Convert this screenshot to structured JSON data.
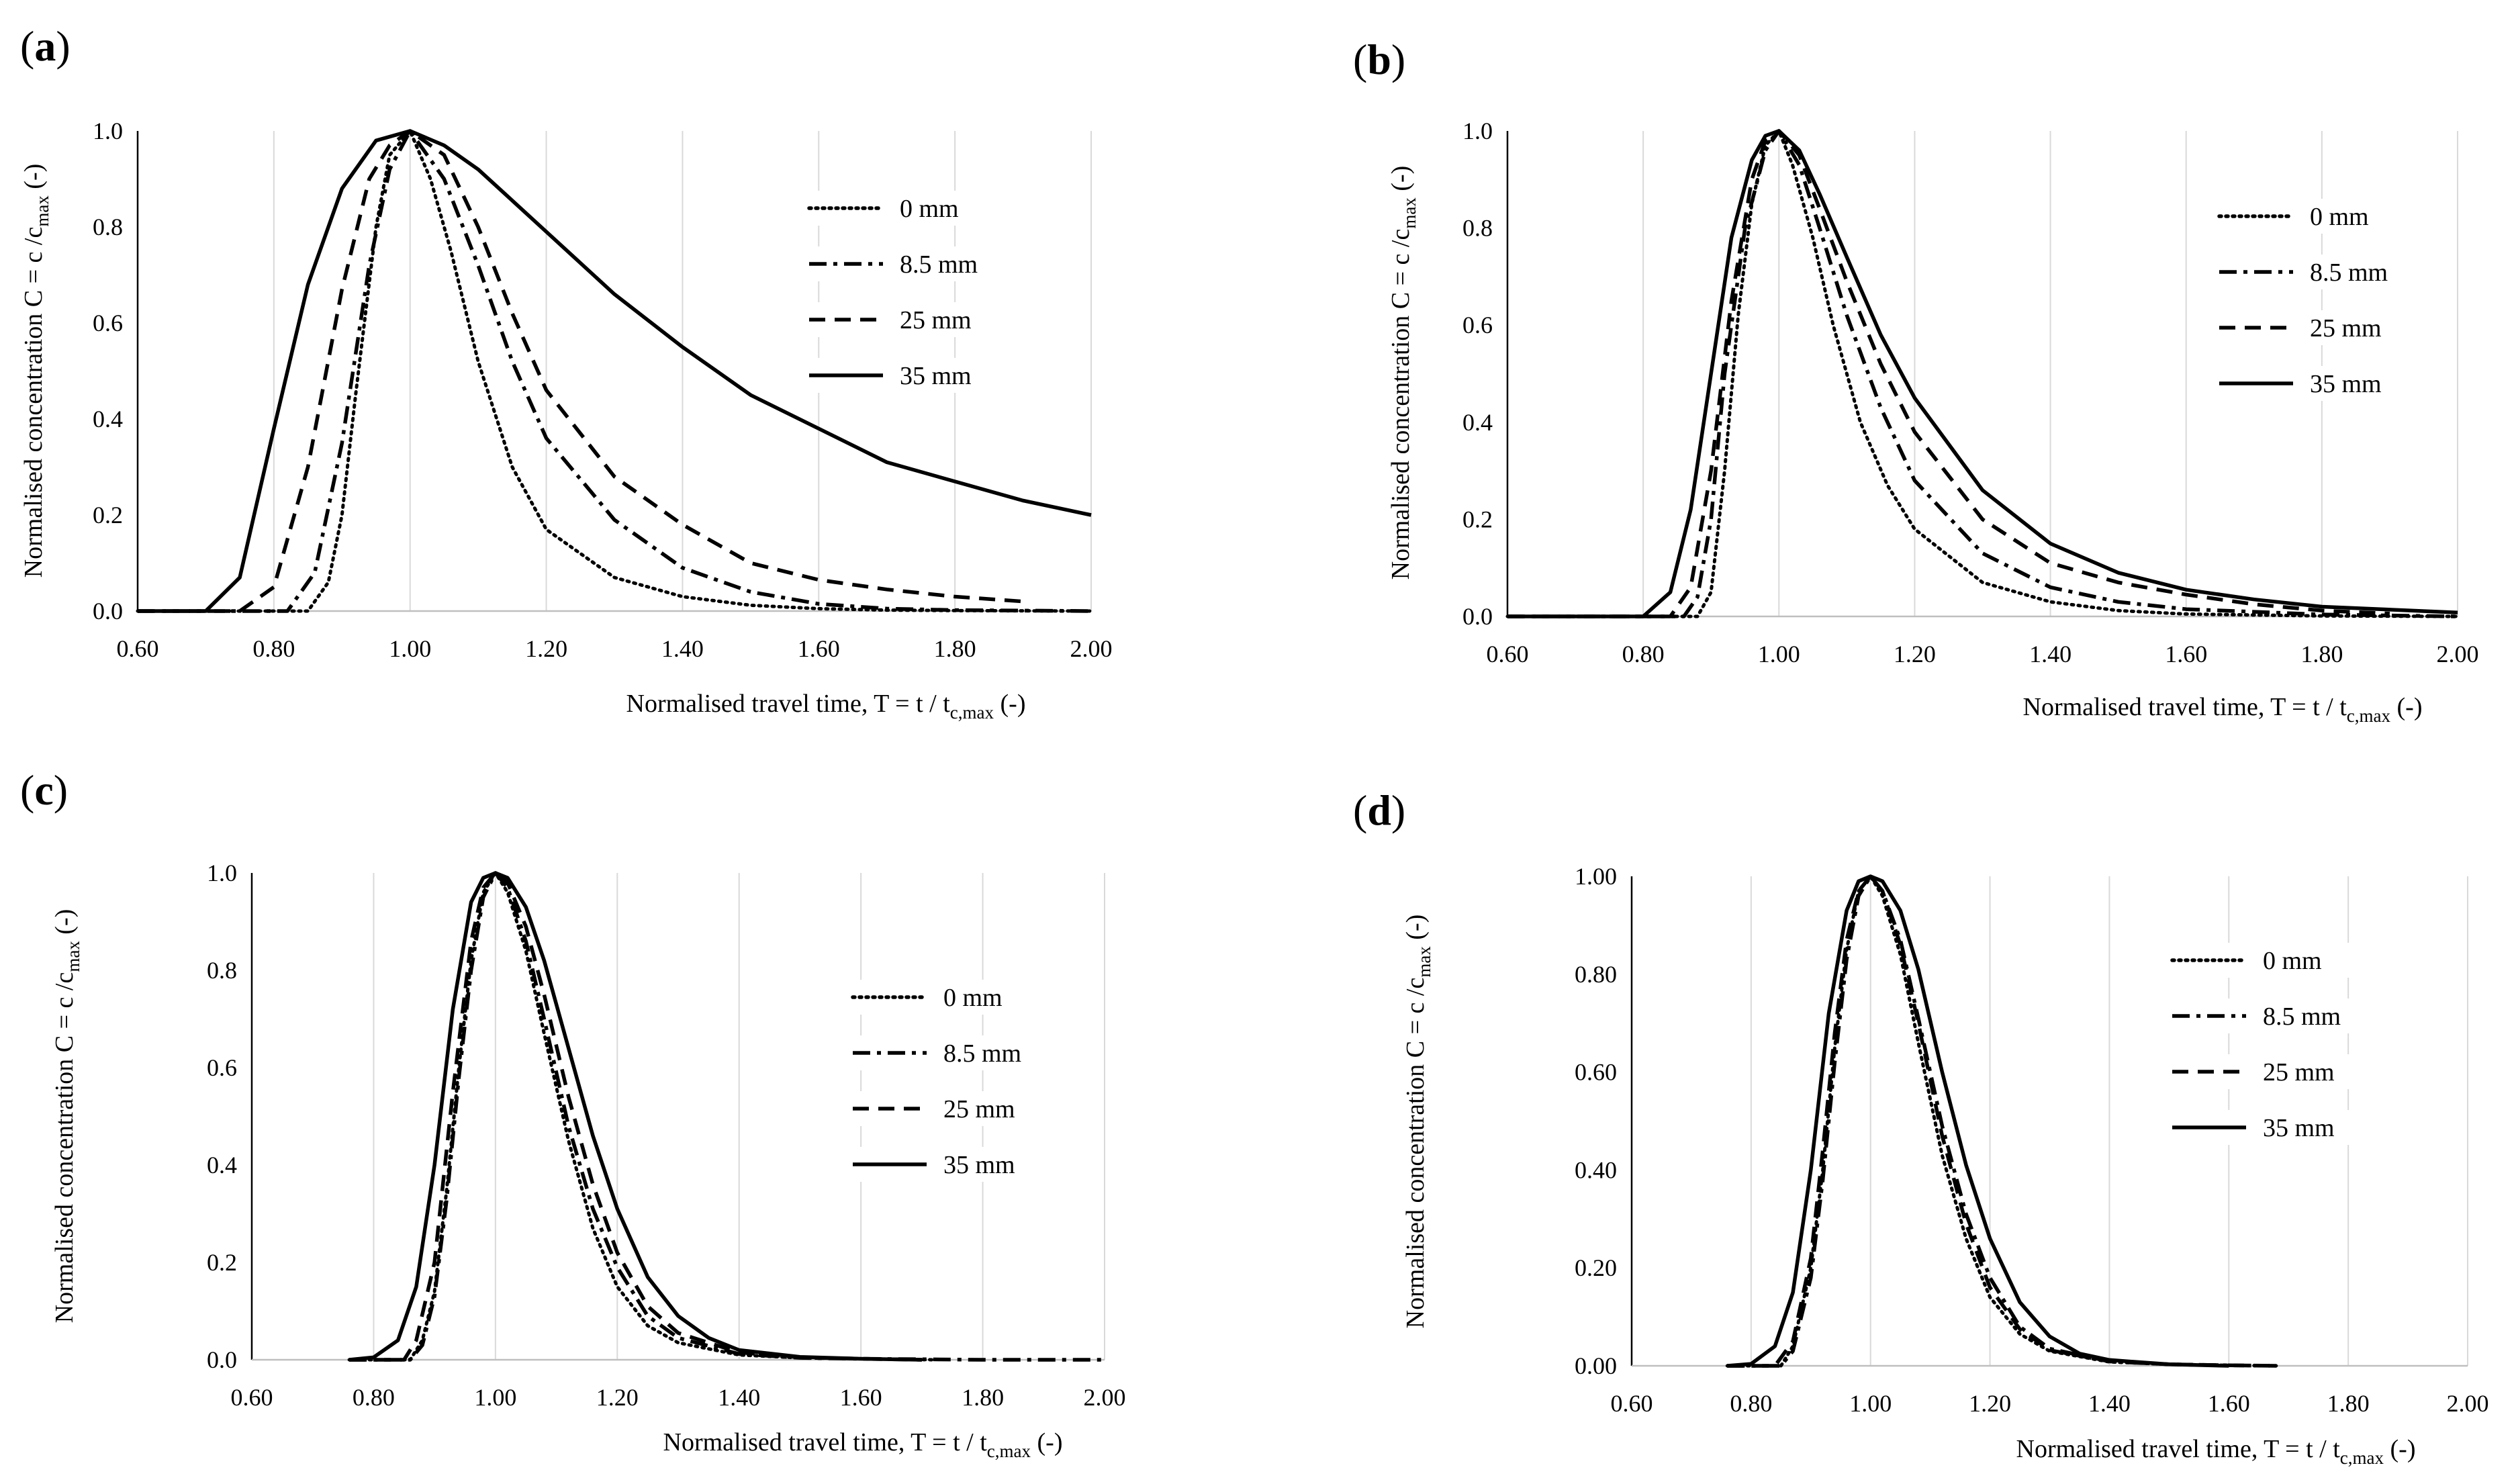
{
  "figure": {
    "panels": [
      "a",
      "b",
      "c",
      "d"
    ],
    "ylabel_main": "Normalised concentration C = c /c",
    "ylabel_sub": "max",
    "ylabel_tail": " (-)",
    "xlabel_main": "Normalised travel time, T = t / t",
    "xlabel_sub": "c,max",
    "xlabel_tail": " (-)"
  },
  "chart_data": [
    {
      "panel": "(a)",
      "type": "line",
      "xlim": [
        0.6,
        2.0
      ],
      "ylim": [
        0.0,
        1.0
      ],
      "xticks": [
        "0.60",
        "0.80",
        "1.00",
        "1.20",
        "1.40",
        "1.60",
        "1.80",
        "2.00"
      ],
      "yticks": [
        "0.0",
        "0.2",
        "0.4",
        "0.6",
        "0.8",
        "1.0"
      ],
      "grid": "vertical",
      "legend_position": "upper-right",
      "series": [
        {
          "name": "0 mm",
          "style": "dotted",
          "x": [
            0.6,
            0.85,
            0.88,
            0.9,
            0.92,
            0.95,
            0.97,
            1.0,
            1.03,
            1.06,
            1.1,
            1.15,
            1.2,
            1.3,
            1.4,
            1.5,
            1.6,
            1.7,
            1.8,
            2.0
          ],
          "y": [
            0,
            0,
            0.06,
            0.2,
            0.45,
            0.8,
            0.95,
            1.0,
            0.9,
            0.75,
            0.52,
            0.3,
            0.17,
            0.07,
            0.03,
            0.012,
            0.005,
            0.002,
            0.001,
            0
          ]
        },
        {
          "name": "8.5 mm",
          "style": "dashdot",
          "x": [
            0.6,
            0.82,
            0.86,
            0.9,
            0.94,
            0.97,
            1.0,
            1.05,
            1.1,
            1.15,
            1.2,
            1.3,
            1.4,
            1.5,
            1.6,
            1.7,
            1.8,
            2.0
          ],
          "y": [
            0,
            0,
            0.08,
            0.35,
            0.72,
            0.92,
            1.0,
            0.9,
            0.72,
            0.52,
            0.36,
            0.19,
            0.09,
            0.04,
            0.015,
            0.005,
            0.002,
            0
          ]
        },
        {
          "name": "25 mm",
          "style": "dashed",
          "x": [
            0.6,
            0.75,
            0.8,
            0.85,
            0.9,
            0.94,
            0.97,
            1.0,
            1.05,
            1.1,
            1.15,
            1.2,
            1.3,
            1.4,
            1.5,
            1.6,
            1.7,
            1.8,
            1.9
          ],
          "y": [
            0,
            0,
            0.05,
            0.3,
            0.67,
            0.9,
            0.97,
            1.0,
            0.95,
            0.8,
            0.62,
            0.46,
            0.28,
            0.18,
            0.1,
            0.065,
            0.045,
            0.03,
            0.02
          ]
        },
        {
          "name": "35 mm",
          "style": "solid",
          "x": [
            0.6,
            0.7,
            0.75,
            0.8,
            0.85,
            0.9,
            0.95,
            1.0,
            1.05,
            1.1,
            1.2,
            1.3,
            1.4,
            1.5,
            1.6,
            1.7,
            1.8,
            1.9,
            2.0
          ],
          "y": [
            0,
            0,
            0.07,
            0.38,
            0.68,
            0.88,
            0.98,
            1.0,
            0.97,
            0.92,
            0.79,
            0.66,
            0.55,
            0.45,
            0.38,
            0.31,
            0.27,
            0.23,
            0.2
          ]
        }
      ]
    },
    {
      "panel": "(b)",
      "type": "line",
      "xlim": [
        0.6,
        2.0
      ],
      "ylim": [
        0.0,
        1.0
      ],
      "xticks": [
        "0.60",
        "0.80",
        "1.00",
        "1.20",
        "1.40",
        "1.60",
        "1.80",
        "2.00"
      ],
      "yticks": [
        "0.0",
        "0.2",
        "0.4",
        "0.6",
        "0.8",
        "1.0"
      ],
      "grid": "vertical",
      "legend_position": "upper-right",
      "series": [
        {
          "name": "0 mm",
          "style": "dotted",
          "x": [
            0.6,
            0.88,
            0.9,
            0.92,
            0.94,
            0.96,
            0.98,
            1.0,
            1.02,
            1.05,
            1.08,
            1.12,
            1.16,
            1.2,
            1.3,
            1.4,
            1.5,
            1.6,
            1.8,
            2.0
          ],
          "y": [
            0,
            0,
            0.05,
            0.3,
            0.62,
            0.85,
            0.97,
            1.0,
            0.93,
            0.78,
            0.6,
            0.4,
            0.27,
            0.18,
            0.07,
            0.03,
            0.012,
            0.005,
            0.001,
            0
          ]
        },
        {
          "name": "8.5 mm",
          "style": "dashdot",
          "x": [
            0.6,
            0.86,
            0.88,
            0.9,
            0.92,
            0.95,
            0.98,
            1.0,
            1.03,
            1.06,
            1.1,
            1.15,
            1.2,
            1.3,
            1.4,
            1.5,
            1.6,
            1.8,
            2.0
          ],
          "y": [
            0,
            0,
            0.04,
            0.2,
            0.5,
            0.8,
            0.96,
            1.0,
            0.93,
            0.8,
            0.62,
            0.43,
            0.28,
            0.13,
            0.06,
            0.03,
            0.015,
            0.004,
            0
          ]
        },
        {
          "name": "25 mm",
          "style": "dashed",
          "x": [
            0.6,
            0.84,
            0.87,
            0.9,
            0.93,
            0.96,
            0.98,
            1.0,
            1.03,
            1.06,
            1.1,
            1.15,
            1.2,
            1.3,
            1.4,
            1.5,
            1.6,
            1.7,
            1.8,
            1.9
          ],
          "y": [
            0,
            0,
            0.06,
            0.3,
            0.65,
            0.9,
            0.98,
            1.0,
            0.95,
            0.84,
            0.69,
            0.52,
            0.38,
            0.2,
            0.11,
            0.07,
            0.045,
            0.025,
            0.012,
            0.006
          ]
        },
        {
          "name": "35 mm",
          "style": "solid",
          "x": [
            0.6,
            0.8,
            0.84,
            0.87,
            0.9,
            0.93,
            0.96,
            0.98,
            1.0,
            1.03,
            1.06,
            1.1,
            1.15,
            1.2,
            1.3,
            1.4,
            1.5,
            1.6,
            1.7,
            1.8,
            2.0
          ],
          "y": [
            0,
            0,
            0.05,
            0.22,
            0.5,
            0.78,
            0.94,
            0.99,
            1.0,
            0.96,
            0.87,
            0.74,
            0.58,
            0.45,
            0.26,
            0.15,
            0.09,
            0.055,
            0.035,
            0.02,
            0.008
          ]
        }
      ]
    },
    {
      "panel": "(c)",
      "type": "line",
      "xlim": [
        0.6,
        2.0
      ],
      "ylim": [
        0.0,
        1.0
      ],
      "xticks": [
        "0.60",
        "0.80",
        "1.00",
        "1.20",
        "1.40",
        "1.60",
        "1.80",
        "2.00"
      ],
      "yticks": [
        "0.0",
        "0.2",
        "0.4",
        "0.6",
        "0.8",
        "1.0"
      ],
      "grid": "vertical",
      "legend_position": "right",
      "series": [
        {
          "name": "0 mm",
          "style": "dotted",
          "x": [
            0.76,
            0.86,
            0.88,
            0.9,
            0.92,
            0.94,
            0.96,
            0.98,
            1.0,
            1.02,
            1.05,
            1.08,
            1.12,
            1.16,
            1.2,
            1.25,
            1.3,
            1.4,
            1.5,
            1.6,
            1.72
          ],
          "y": [
            0,
            0,
            0.04,
            0.14,
            0.35,
            0.6,
            0.82,
            0.96,
            1.0,
            0.96,
            0.84,
            0.67,
            0.45,
            0.27,
            0.15,
            0.07,
            0.035,
            0.01,
            0.004,
            0.002,
            0
          ]
        },
        {
          "name": "8.5 mm",
          "style": "dashdot",
          "x": [
            0.76,
            0.86,
            0.88,
            0.9,
            0.92,
            0.94,
            0.96,
            0.98,
            1.0,
            1.02,
            1.05,
            1.08,
            1.12,
            1.16,
            1.2,
            1.25,
            1.3,
            1.4,
            1.5,
            1.6,
            1.8,
            2.0
          ],
          "y": [
            0,
            0,
            0.03,
            0.13,
            0.33,
            0.58,
            0.8,
            0.95,
            1.0,
            0.97,
            0.86,
            0.7,
            0.48,
            0.31,
            0.19,
            0.09,
            0.045,
            0.012,
            0.004,
            0.002,
            0,
            0
          ]
        },
        {
          "name": "25 mm",
          "style": "dashed",
          "x": [
            0.76,
            0.85,
            0.87,
            0.9,
            0.93,
            0.96,
            0.98,
            1.0,
            1.02,
            1.05,
            1.08,
            1.12,
            1.16,
            1.2,
            1.25,
            1.3,
            1.4,
            1.5,
            1.6,
            1.7
          ],
          "y": [
            0,
            0,
            0.04,
            0.2,
            0.55,
            0.86,
            0.97,
            1.0,
            0.98,
            0.89,
            0.75,
            0.54,
            0.36,
            0.22,
            0.11,
            0.055,
            0.015,
            0.005,
            0.002,
            0
          ]
        },
        {
          "name": "35 mm",
          "style": "solid",
          "x": [
            0.76,
            0.8,
            0.84,
            0.87,
            0.9,
            0.93,
            0.96,
            0.98,
            1.0,
            1.02,
            1.05,
            1.08,
            1.12,
            1.16,
            1.2,
            1.25,
            1.3,
            1.35,
            1.4,
            1.5,
            1.6,
            1.7
          ],
          "y": [
            0,
            0.005,
            0.04,
            0.15,
            0.4,
            0.72,
            0.94,
            0.99,
            1.0,
            0.99,
            0.93,
            0.82,
            0.64,
            0.46,
            0.31,
            0.17,
            0.09,
            0.045,
            0.02,
            0.006,
            0.002,
            0
          ]
        }
      ]
    },
    {
      "panel": "(d)",
      "type": "line",
      "xlim": [
        0.6,
        2.0
      ],
      "ylim": [
        0.0,
        1.0
      ],
      "xticks": [
        "0.60",
        "0.80",
        "1.00",
        "1.20",
        "1.40",
        "1.60",
        "1.80",
        "2.00"
      ],
      "yticks": [
        "0.00",
        "0.20",
        "0.40",
        "0.60",
        "0.80",
        "1.00"
      ],
      "grid": "vertical",
      "legend_position": "upper-right",
      "series": [
        {
          "name": "0 mm",
          "style": "dotted",
          "x": [
            0.76,
            0.85,
            0.87,
            0.9,
            0.92,
            0.94,
            0.96,
            0.98,
            1.0,
            1.02,
            1.05,
            1.08,
            1.12,
            1.16,
            1.2,
            1.25,
            1.3,
            1.4,
            1.5,
            1.6,
            1.68
          ],
          "y": [
            0,
            0,
            0.04,
            0.2,
            0.4,
            0.65,
            0.85,
            0.97,
            1.0,
            0.96,
            0.84,
            0.66,
            0.43,
            0.26,
            0.14,
            0.065,
            0.03,
            0.008,
            0.003,
            0.001,
            0
          ]
        },
        {
          "name": "8.5 mm",
          "style": "dashdot",
          "x": [
            0.76,
            0.85,
            0.87,
            0.9,
            0.92,
            0.94,
            0.96,
            0.98,
            1.0,
            1.02,
            1.05,
            1.08,
            1.12,
            1.16,
            1.2,
            1.25,
            1.3,
            1.4,
            1.5,
            1.6,
            1.68
          ],
          "y": [
            0,
            0,
            0.03,
            0.18,
            0.38,
            0.62,
            0.83,
            0.96,
            1.0,
            0.97,
            0.87,
            0.71,
            0.49,
            0.31,
            0.18,
            0.08,
            0.035,
            0.009,
            0.003,
            0.001,
            0
          ]
        },
        {
          "name": "25 mm",
          "style": "dashed",
          "x": [
            0.76,
            0.84,
            0.87,
            0.9,
            0.92,
            0.94,
            0.96,
            0.98,
            1.0,
            1.02,
            1.05,
            1.08,
            1.12,
            1.16,
            1.2,
            1.25,
            1.3,
            1.4,
            1.5,
            1.6,
            1.68
          ],
          "y": [
            0,
            0,
            0.05,
            0.22,
            0.44,
            0.68,
            0.87,
            0.97,
            1.0,
            0.97,
            0.86,
            0.7,
            0.47,
            0.29,
            0.16,
            0.075,
            0.032,
            0.009,
            0.003,
            0.001,
            0
          ]
        },
        {
          "name": "35 mm",
          "style": "solid",
          "x": [
            0.76,
            0.8,
            0.84,
            0.87,
            0.9,
            0.93,
            0.96,
            0.98,
            1.0,
            1.02,
            1.05,
            1.08,
            1.12,
            1.16,
            1.2,
            1.25,
            1.3,
            1.35,
            1.4,
            1.5,
            1.6
          ],
          "y": [
            0,
            0.004,
            0.04,
            0.15,
            0.4,
            0.72,
            0.93,
            0.99,
            1.0,
            0.99,
            0.93,
            0.81,
            0.6,
            0.41,
            0.26,
            0.13,
            0.06,
            0.025,
            0.012,
            0.003,
            0
          ]
        }
      ]
    }
  ]
}
